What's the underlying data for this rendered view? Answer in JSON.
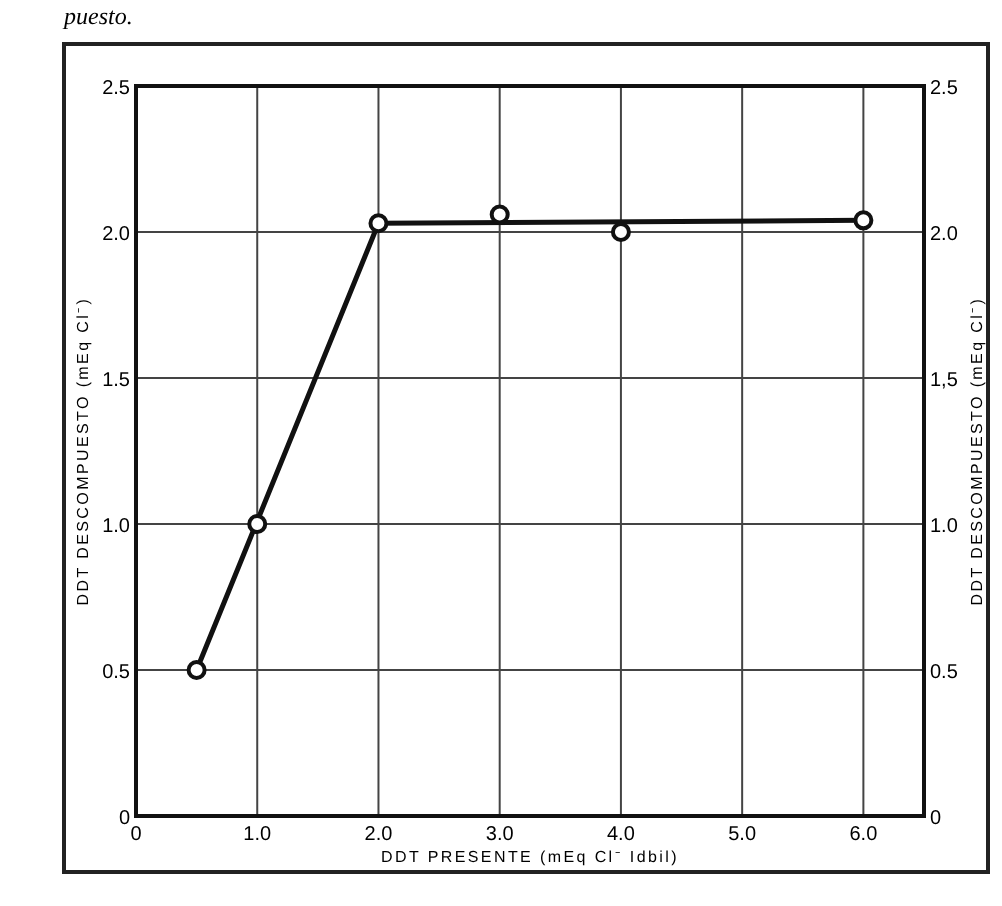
{
  "chart_data": {
    "type": "scatter",
    "xlabel": "DDT PRESENTE (mEq Cl⁻ Idbil)",
    "ylabel": "DDT DESCOMPUESTO (mEq Cl⁻)",
    "y2label": "DDT DESCOMPUESTO (mEq Cl⁻)",
    "annotations": [
      "puesto."
    ],
    "series": [
      {
        "color": "#111111",
        "x": [
          0.5,
          1.0,
          2.0,
          3.0,
          4.0,
          6.0
        ],
        "values": [
          0.5,
          1.0,
          2.03,
          2.06,
          2.0,
          2.04
        ],
        "marker": "circle"
      },
      {
        "type": "line",
        "color": "#111111",
        "x": [
          0.5,
          2.0,
          6.0
        ],
        "values": [
          0.5,
          2.03,
          2.04
        ]
      }
    ],
    "xlim": [
      0,
      6.5
    ],
    "ylim": [
      0,
      2.5
    ],
    "y2lim": [
      0,
      2.5
    ],
    "xticks": [
      0,
      {
        "value": 1,
        "label": "1.0"
      },
      {
        "value": 2,
        "label": "2.0"
      },
      {
        "value": 3,
        "label": "3.0"
      },
      {
        "value": 4,
        "label": "4.0"
      },
      {
        "value": 5,
        "label": "5.0"
      },
      {
        "value": 6,
        "label": "6.0"
      }
    ],
    "yticks": [
      0,
      0.5,
      {
        "value": 1,
        "label": "1.0"
      },
      1.5,
      {
        "value": 2,
        "label": "2.0"
      },
      2.5
    ],
    "y2ticks": [
      0,
      0.5,
      {
        "value": 1,
        "label": "1.0"
      },
      {
        "value": 1.5,
        "label": "1,5"
      },
      {
        "value": 2,
        "label": "2.0"
      },
      2.5
    ],
    "grid": true
  }
}
